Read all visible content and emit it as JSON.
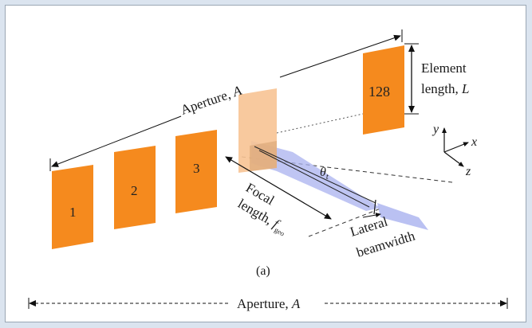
{
  "figure": {
    "panel_label": "(a)",
    "colors": {
      "element": "#f58a1e",
      "element_highlight": "#f7c394",
      "beam": "#a9b2ef",
      "background": "#dbe4ef",
      "frame_border": "#9aa6b4",
      "line": "#111111"
    },
    "elements": [
      "1",
      "2",
      "3",
      "128"
    ],
    "labels": {
      "aperture_top_prefix": "Aperture, ",
      "aperture_top_var": "A",
      "element_length_line1": "Element",
      "element_length_line2_prefix": "length, ",
      "element_length_var": "L",
      "focal_line1": "Focal",
      "focal_line2_prefix": "length, ",
      "focal_var": "f",
      "focal_sub": "geo",
      "theta": "θ",
      "theta_sub": "t",
      "lateral_line1": "Lateral",
      "lateral_line2": "beamwidth",
      "aperture_bottom_prefix": "Aperture, ",
      "aperture_bottom_var": "A"
    },
    "axes": {
      "y": "y",
      "x": "x",
      "z": "z"
    },
    "icons": [
      "axes-triad-icon",
      "dimension-arrow-icon"
    ]
  }
}
